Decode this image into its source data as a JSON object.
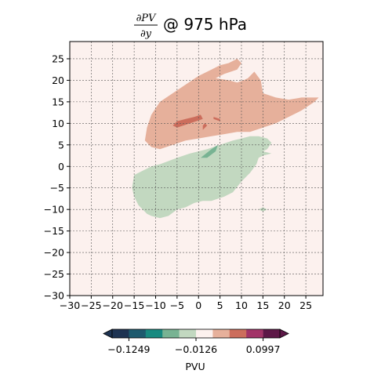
{
  "chart_data": {
    "type": "contourf",
    "title": {
      "numerator": "∂PV",
      "denominator": "∂y",
      "suffix": "@ 975 hPa"
    },
    "xlabel": "",
    "ylabel": "",
    "xlim": [
      -30,
      29
    ],
    "ylim": [
      -30,
      29
    ],
    "xticks": [
      -30,
      -25,
      -20,
      -15,
      -10,
      -5,
      0,
      5,
      10,
      15,
      20,
      25
    ],
    "yticks": [
      -30,
      -25,
      -20,
      -15,
      -10,
      -5,
      0,
      5,
      10,
      15,
      20,
      25
    ],
    "grid": true,
    "background_color": "#fcf1ee",
    "colorbar": {
      "orientation": "horizontal",
      "label": "PVU",
      "tick_labels": [
        "−0.1249",
        "−0.0126",
        "0.0997"
      ],
      "colors": [
        "#1d3352",
        "#1d5a6e",
        "#188a80",
        "#78b393",
        "#c2d8c0",
        "#fcf1ee",
        "#e6b09b",
        "#cc6d5c",
        "#a23468",
        "#5d1847"
      ],
      "extend": "both"
    },
    "regions": [
      {
        "level": "positive-weak",
        "color": "#e6b09b",
        "polygon": [
          [
            -12.5,
            6
          ],
          [
            -12,
            9
          ],
          [
            -11,
            12
          ],
          [
            -9,
            15
          ],
          [
            -6,
            17
          ],
          [
            -3,
            19
          ],
          [
            0,
            21
          ],
          [
            3,
            22.5
          ],
          [
            5,
            23.5
          ],
          [
            7,
            24
          ],
          [
            9,
            25
          ],
          [
            10,
            24
          ],
          [
            9,
            22.5
          ],
          [
            6,
            21.5
          ],
          [
            4,
            20.5
          ],
          [
            7,
            20
          ],
          [
            9,
            19.5
          ],
          [
            10.5,
            20
          ],
          [
            11.5,
            20.5
          ],
          [
            13,
            22
          ],
          [
            14.5,
            20
          ],
          [
            15,
            17
          ],
          [
            18,
            16
          ],
          [
            21,
            15.5
          ],
          [
            24,
            16
          ],
          [
            26,
            16
          ],
          [
            28,
            16
          ],
          [
            27,
            15
          ],
          [
            24,
            13
          ],
          [
            21,
            11.5
          ],
          [
            18,
            10
          ],
          [
            15,
            9
          ],
          [
            12,
            8
          ],
          [
            9,
            8
          ],
          [
            6,
            7.5
          ],
          [
            3,
            7
          ],
          [
            0,
            6.5
          ],
          [
            -3,
            6
          ],
          [
            -6,
            5
          ],
          [
            -9,
            4
          ],
          [
            -11,
            4.5
          ],
          [
            -12.5,
            6
          ]
        ]
      },
      {
        "level": "positive-strong",
        "color": "#cc6d5c",
        "polygon": [
          [
            -5,
            9
          ],
          [
            -2,
            10
          ],
          [
            1,
            11
          ],
          [
            0.5,
            12
          ],
          [
            -1,
            11.5
          ],
          [
            -3,
            11
          ],
          [
            -5,
            10.5
          ],
          [
            -6,
            9.5
          ],
          [
            -5,
            9
          ]
        ]
      },
      {
        "level": "positive-strong",
        "color": "#cc6d5c",
        "polygon": [
          [
            1,
            8.5
          ],
          [
            2,
            9.5
          ],
          [
            1.5,
            10
          ],
          [
            1,
            9.5
          ],
          [
            1,
            8.5
          ]
        ]
      },
      {
        "level": "positive-strong",
        "color": "#cc6d5c",
        "polygon": [
          [
            3.5,
            11
          ],
          [
            5,
            10.5
          ],
          [
            5,
            11
          ],
          [
            3.5,
            11.5
          ],
          [
            3.5,
            11
          ]
        ]
      },
      {
        "level": "negative-weak",
        "color": "#c2d8c0",
        "polygon": [
          [
            -15,
            -2
          ],
          [
            -11,
            0
          ],
          [
            -9,
            0.5
          ],
          [
            -5,
            2
          ],
          [
            -2,
            3
          ],
          [
            2,
            4
          ],
          [
            5,
            5
          ],
          [
            8,
            6
          ],
          [
            10,
            6.5
          ],
          [
            12,
            7
          ],
          [
            14,
            7
          ],
          [
            16,
            6.5
          ],
          [
            17,
            5.5
          ],
          [
            16,
            4
          ],
          [
            15,
            3.5
          ],
          [
            17,
            3
          ],
          [
            15,
            2.5
          ],
          [
            14,
            2
          ],
          [
            13.5,
            0.5
          ],
          [
            12,
            -1.5
          ],
          [
            10,
            -3.5
          ],
          [
            8,
            -6
          ],
          [
            6,
            -7
          ],
          [
            3,
            -8
          ],
          [
            1,
            -8
          ],
          [
            -1,
            -8.5
          ],
          [
            -3,
            -9.5
          ],
          [
            -5,
            -10
          ],
          [
            -7,
            -11.5
          ],
          [
            -9,
            -12
          ],
          [
            -11,
            -11.5
          ],
          [
            -12,
            -11
          ],
          [
            -14,
            -9
          ],
          [
            -15,
            -7
          ],
          [
            -15.5,
            -5
          ],
          [
            -15,
            -2
          ]
        ]
      },
      {
        "level": "negative-weak",
        "color": "#c2d8c0",
        "polygon": [
          [
            14,
            -10
          ],
          [
            15,
            -9.5
          ],
          [
            16,
            -10
          ],
          [
            15,
            -10.5
          ],
          [
            14,
            -10
          ]
        ]
      },
      {
        "level": "negative-strong",
        "color": "#78b393",
        "polygon": [
          [
            0.5,
            2
          ],
          [
            3,
            4
          ],
          [
            4.5,
            5
          ],
          [
            4,
            3.5
          ],
          [
            2,
            2
          ],
          [
            0.5,
            2
          ]
        ]
      }
    ]
  }
}
